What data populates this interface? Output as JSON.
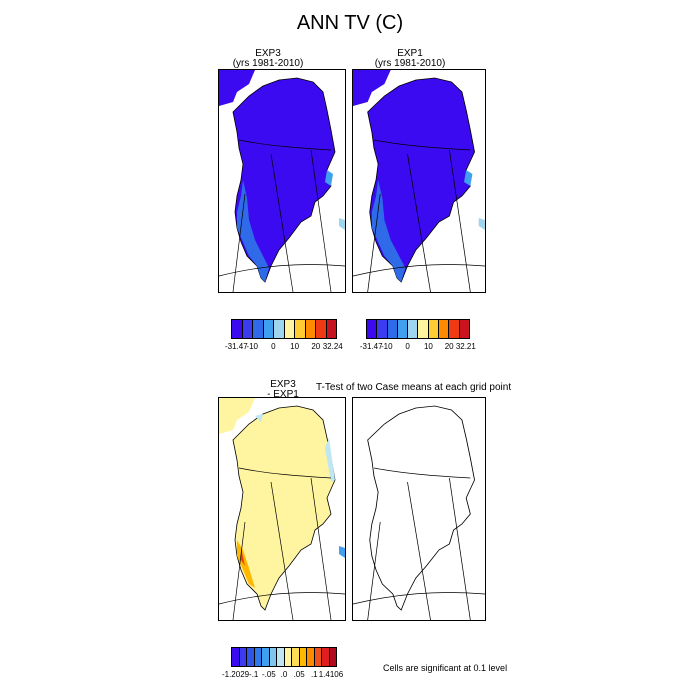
{
  "figure": {
    "title": "ANN TV (C)"
  },
  "panels": {
    "exp3": {
      "title": "EXP3",
      "subtitle": "(yrs 1981-2010)"
    },
    "exp1": {
      "title": "EXP1",
      "subtitle": "(yrs 1981-2010)"
    },
    "diff": {
      "title": "EXP3",
      "subtitle": "- EXP1"
    },
    "ttest": {
      "title": "T-Test of two Case means at each grid point"
    },
    "note": "Cells are significant at 0.1 level"
  },
  "colorbars": {
    "top_left": {
      "colors": [
        "#3c0af0",
        "#3b3bf0",
        "#2f6be8",
        "#3fa0ef",
        "#9fd6ee",
        "#fff4a0",
        "#ffcc33",
        "#ff8a00",
        "#f03a14",
        "#c8141e"
      ],
      "labels": [
        "-31.47",
        "-10",
        "0",
        "10",
        "20",
        "32.24"
      ]
    },
    "top_right": {
      "colors": [
        "#3c0af0",
        "#3b3bf0",
        "#2f6be8",
        "#3fa0ef",
        "#9fd6ee",
        "#fff4a0",
        "#ffcc33",
        "#ff8a00",
        "#f03a14",
        "#c8141e"
      ],
      "labels": [
        "-31.47",
        "-10",
        "0",
        "10",
        "20",
        "32.21"
      ]
    },
    "bottom": {
      "colors": [
        "#3c0af0",
        "#3b3bf0",
        "#2f55e8",
        "#2f7ae8",
        "#3fa0ef",
        "#7fc6ef",
        "#bfe6f3",
        "#fff4a0",
        "#ffdc55",
        "#ffb800",
        "#ff8a00",
        "#f0501e",
        "#e01e1e",
        "#b00a1e"
      ],
      "labels": [
        "-1.2029",
        "-.1",
        "-.05",
        ".0",
        ".05",
        ".1",
        "1.4106"
      ]
    }
  },
  "chart_data": [
    {
      "type": "heatmap",
      "title": "EXP3",
      "subtitle": "(yrs 1981-2010)",
      "colorbar_range": [
        -31.47,
        32.24
      ],
      "dominant_value_range": [
        -31.47,
        -10
      ]
    },
    {
      "type": "heatmap",
      "title": "EXP1",
      "subtitle": "(yrs 1981-2010)",
      "colorbar_range": [
        -31.47,
        32.21
      ],
      "dominant_value_range": [
        -31.47,
        -10
      ]
    },
    {
      "type": "heatmap",
      "title": "EXP3 - EXP1",
      "colorbar_range": [
        -1.2029,
        1.4106
      ],
      "dominant_value_range": [
        0,
        0.05
      ]
    },
    {
      "type": "heatmap",
      "title": "T-Test of two Case means at each grid point",
      "note": "Cells are significant at 0.1 level"
    }
  ],
  "colors": {
    "cold": "#3c0af0",
    "cool": "#2f6be8",
    "diff_fill": "#fff4a0",
    "diff_warm": "#ffb800"
  }
}
